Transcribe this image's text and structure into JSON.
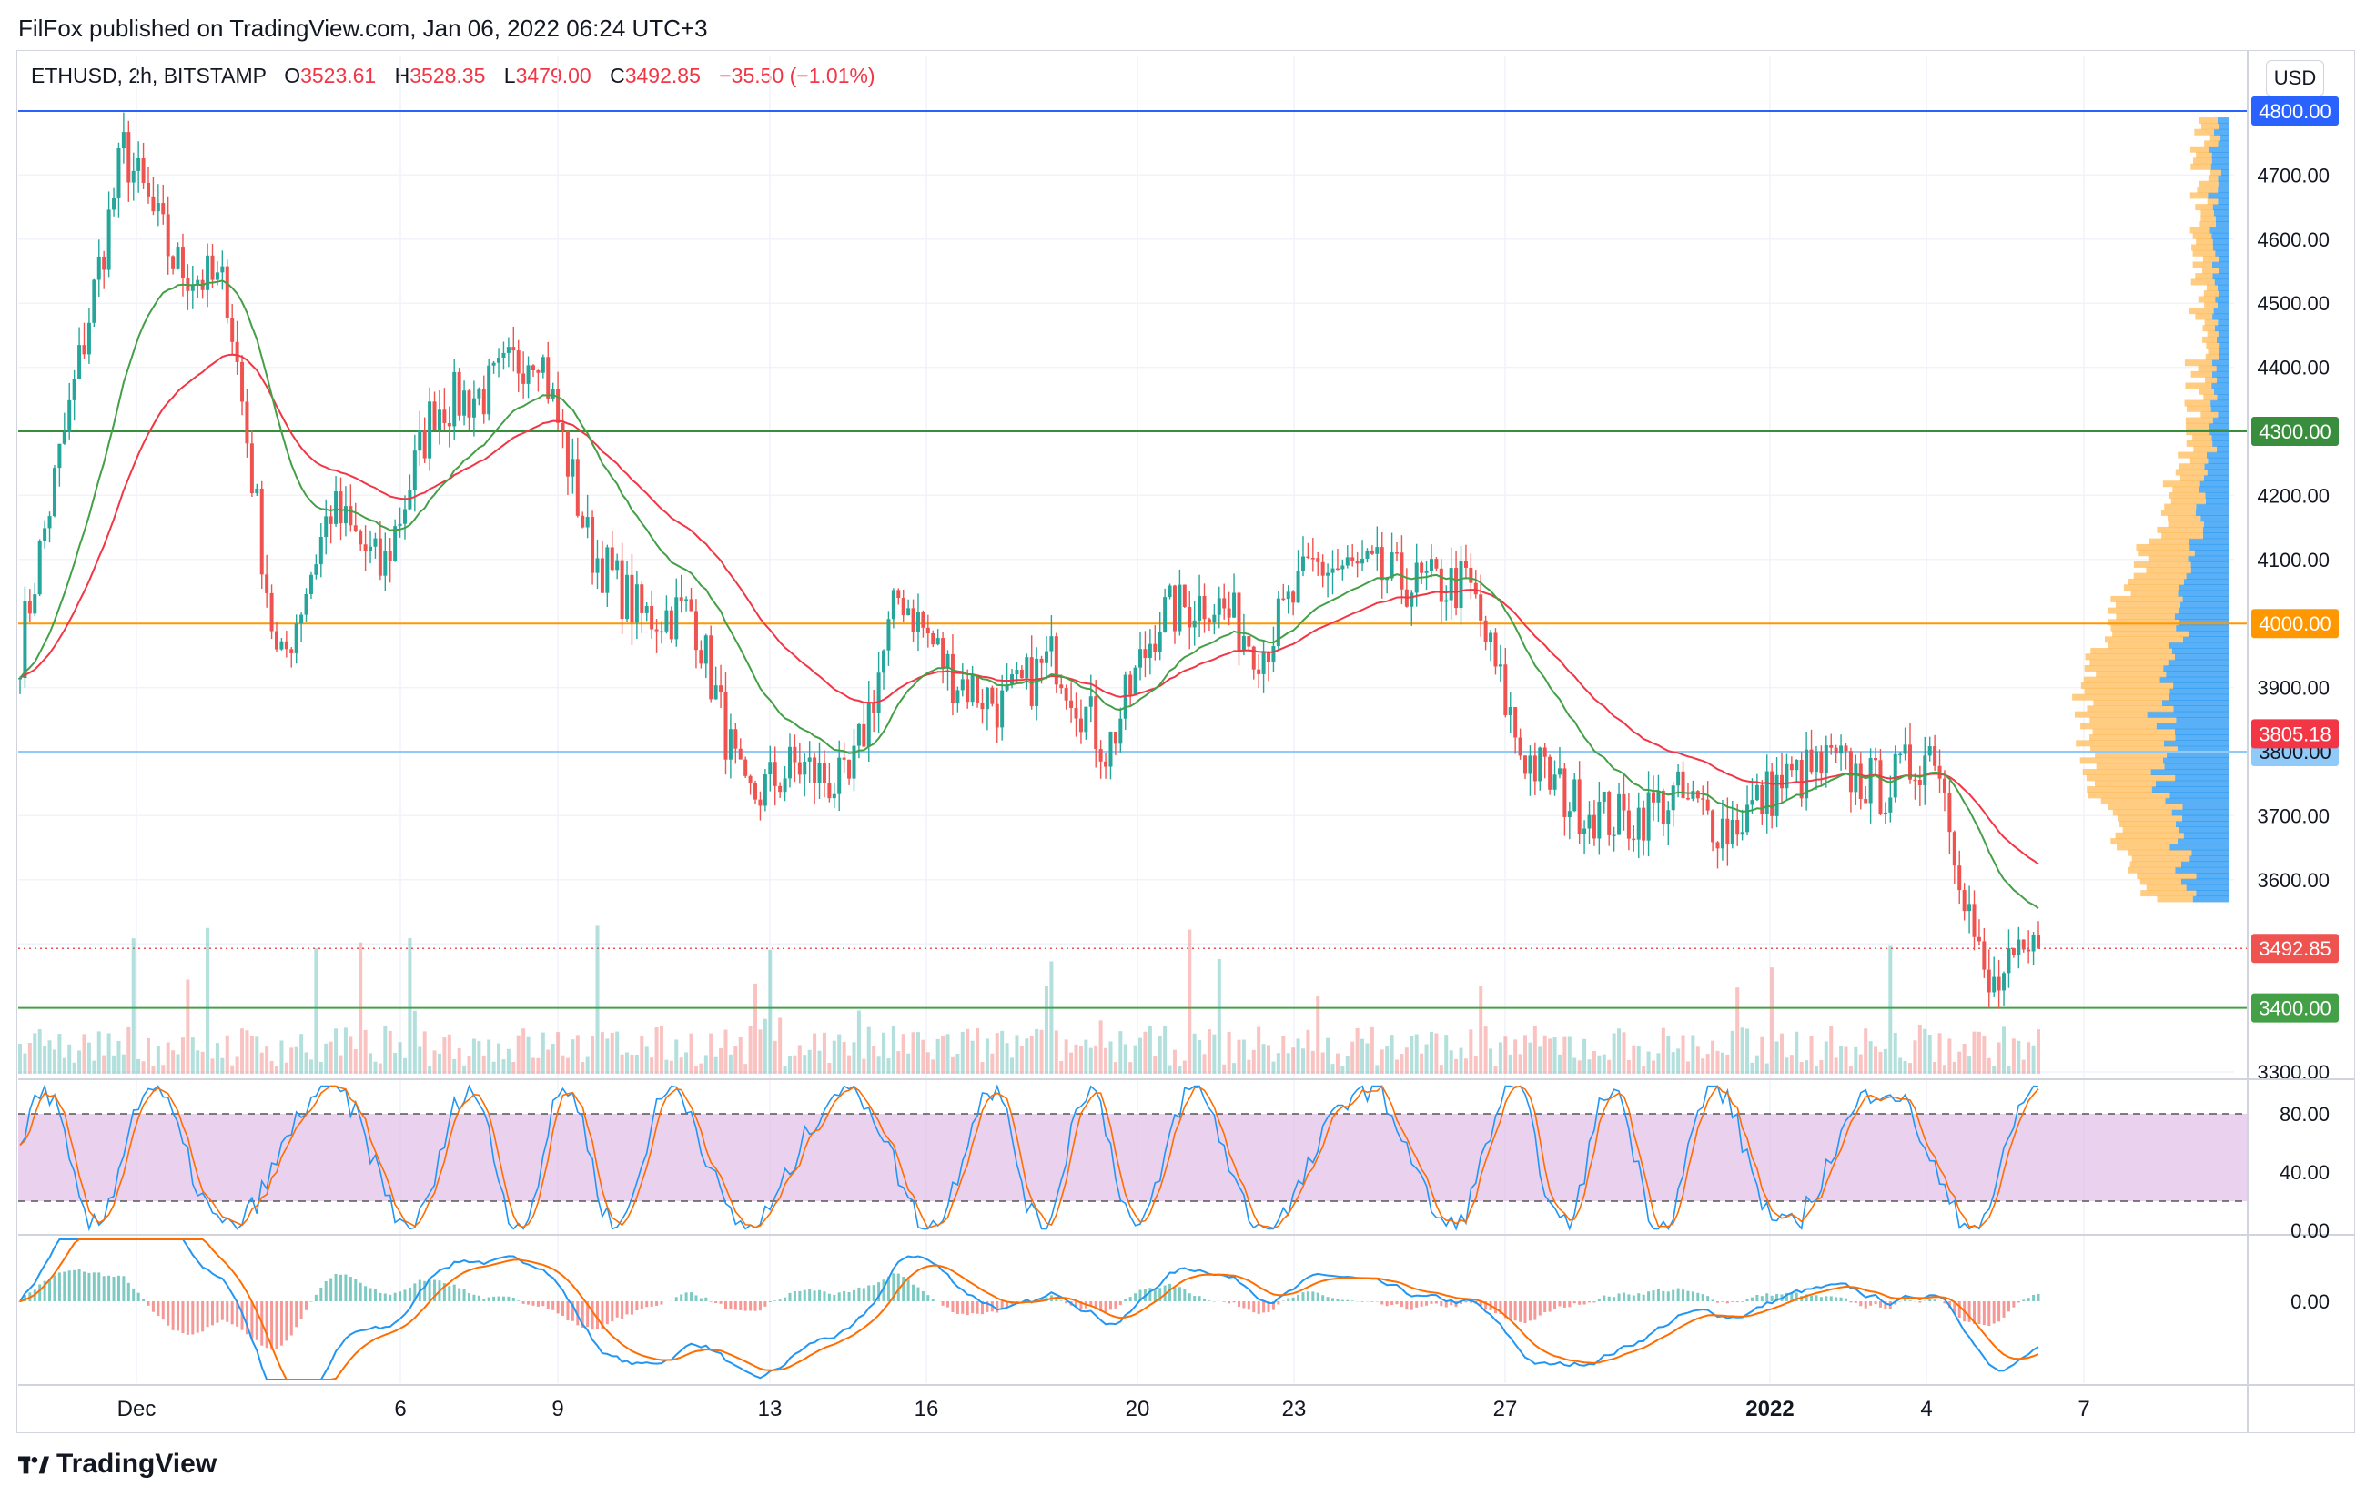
{
  "header": {
    "publisher": "FilFox published on TradingView.com, Jan 06, 2022 06:24 UTC+3"
  },
  "legend": {
    "symbol": "ETHUSD, 2h, BITSTAMP",
    "open_label": "O",
    "open": "3523.61",
    "high_label": "H",
    "high": "3528.35",
    "low_label": "L",
    "low": "3479.00",
    "close_label": "C",
    "close": "3492.85",
    "change": "−35.50 (−1.01%)"
  },
  "currency": "USD",
  "brand": "TradingView",
  "colors": {
    "up": "#26a69a",
    "down": "#ef5350",
    "grid": "#f0f3fa",
    "ema_red": "#f23645",
    "ema_green": "#43a047",
    "blue_line": "#2962ff",
    "orange_line": "#ff9800",
    "green_line": "#388e3c",
    "stoch_k": "#2196f3",
    "stoch_d": "#ff6d00",
    "stoch_band": "#e1bee7",
    "macd": "#2196f3",
    "signal": "#ff6d00"
  },
  "chart_data": [
    {
      "type": "candlestick",
      "title": "ETHUSD, 2h, BITSTAMP",
      "ylim": [
        3300,
        4800
      ],
      "yticks": [
        "3300.00",
        "3400.00",
        "3500.00",
        "3600.00",
        "3700.00",
        "3800.00",
        "3900.00",
        "4000.00",
        "4100.00",
        "4200.00",
        "4300.00",
        "4400.00",
        "4500.00",
        "4600.00",
        "4700.00",
        "4800.00"
      ],
      "xticks": [
        "Dec",
        "6",
        "9",
        "13",
        "16",
        "20",
        "23",
        "27",
        "2022",
        "4",
        "7"
      ],
      "price_path": [
        [
          "Nov 29",
          3960
        ],
        [
          "Nov 30",
          4350
        ],
        [
          "Dec 1",
          4740
        ],
        [
          "Dec 2",
          4560
        ],
        [
          "Dec 3",
          4520
        ],
        [
          "Dec 4",
          3920
        ],
        [
          "Dec 5",
          4180
        ],
        [
          "Dec 6",
          4080
        ],
        [
          "Dec 7",
          4340
        ],
        [
          "Dec 8",
          4360
        ],
        [
          "Dec 9",
          4440
        ],
        [
          "Dec 10",
          4120
        ],
        [
          "Dec 11",
          4010
        ],
        [
          "Dec 12",
          4020
        ],
        [
          "Dec 13",
          3720
        ],
        [
          "Dec 14",
          3780
        ],
        [
          "Dec 15",
          3740
        ],
        [
          "Dec 16",
          4050
        ],
        [
          "Dec 17",
          3920
        ],
        [
          "Dec 18",
          3870
        ],
        [
          "Dec 19",
          3950
        ],
        [
          "Dec 20",
          3800
        ],
        [
          "Dec 21",
          4010
        ],
        [
          "Dec 22",
          4040
        ],
        [
          "Dec 23",
          3960
        ],
        [
          "Dec 24",
          4090
        ],
        [
          "Dec 25",
          4080
        ],
        [
          "Dec 26",
          4060
        ],
        [
          "Dec 27",
          4060
        ],
        [
          "Dec 28",
          3800
        ],
        [
          "Dec 29",
          3720
        ],
        [
          "Dec 30",
          3690
        ],
        [
          "Dec 31",
          3730
        ],
        [
          "Jan 1",
          3680
        ],
        [
          "Jan 2",
          3750
        ],
        [
          "Jan 3",
          3780
        ],
        [
          "Jan 4",
          3740
        ],
        [
          "Jan 5",
          3810
        ],
        [
          "Jan 5 late",
          3420
        ],
        [
          "Jan 6",
          3492.85
        ]
      ],
      "horizontal_levels": [
        {
          "label": "4800.00",
          "value": 4800,
          "color": "#2962ff"
        },
        {
          "label": "4300.00",
          "value": 4300,
          "color": "#388e3c"
        },
        {
          "label": "4000.00",
          "value": 4000,
          "color": "#ff9800"
        },
        {
          "label": "3800.00",
          "value": 3800,
          "color": "#90caf9"
        },
        {
          "label": "3400.00",
          "value": 3400,
          "color": "#43a047"
        }
      ],
      "price_tags": [
        {
          "label": "3805.18",
          "value": 3805.18,
          "color": "#f23645"
        },
        {
          "label": "3492.85",
          "value": 3492.85,
          "color": "#ef5350"
        }
      ],
      "indicators": [
        "EMA (red)",
        "EMA (green)",
        "Volume",
        "Volume Profile"
      ]
    },
    {
      "type": "line",
      "title": "Stochastic",
      "ylim": [
        0,
        100
      ],
      "yticks": [
        "80.00",
        "40.00",
        "0.00"
      ],
      "band": [
        20,
        80
      ]
    },
    {
      "type": "line",
      "title": "MACD",
      "yticks": [
        "0.00"
      ]
    }
  ]
}
